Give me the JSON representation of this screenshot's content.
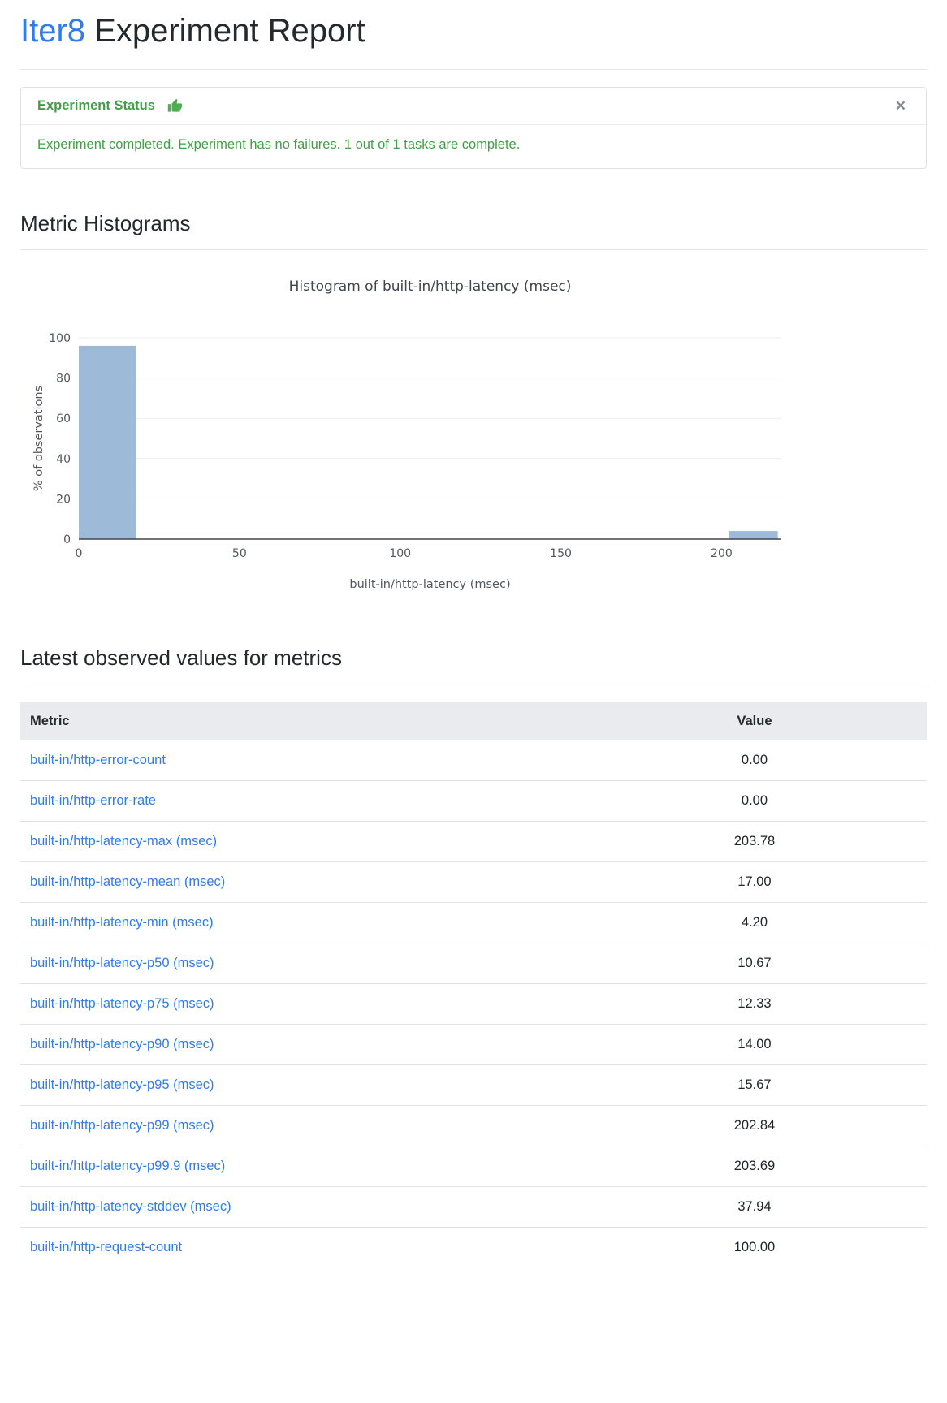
{
  "page": {
    "title_brand": "Iter8",
    "title_rest": " Experiment Report"
  },
  "status_card": {
    "header": "Experiment Status",
    "close_icon": "✕",
    "message": "Experiment completed. Experiment has no failures. 1 out of 1 tasks are complete.",
    "accent_color": "#41a046",
    "icon_color": "#4caf50"
  },
  "sections": {
    "histograms_heading": "Metric Histograms",
    "metrics_heading": "Latest observed values for metrics"
  },
  "chart_data": {
    "type": "bar",
    "title": "Histogram of built-in/http-latency (msec)",
    "xlabel": "built-in/http-latency (msec)",
    "ylabel": "% of observations",
    "xlim": [
      0,
      218.6
    ],
    "ylim": [
      0,
      100
    ],
    "xticks": [
      0,
      50,
      100,
      150,
      200
    ],
    "yticks": [
      0,
      20,
      40,
      60,
      80,
      100
    ],
    "bars": [
      {
        "x0": 0,
        "x1": 17.8,
        "value": 96
      },
      {
        "x0": 202.2,
        "x1": 217.5,
        "value": 4
      }
    ],
    "bar_color": "#9dbad8",
    "grid": true,
    "legend": "none"
  },
  "table": {
    "columns": [
      "Metric",
      "Value"
    ],
    "rows": [
      {
        "metric": "built-in/http-error-count",
        "value": "0.00"
      },
      {
        "metric": "built-in/http-error-rate",
        "value": "0.00"
      },
      {
        "metric": "built-in/http-latency-max (msec)",
        "value": "203.78"
      },
      {
        "metric": "built-in/http-latency-mean (msec)",
        "value": "17.00"
      },
      {
        "metric": "built-in/http-latency-min (msec)",
        "value": "4.20"
      },
      {
        "metric": "built-in/http-latency-p50 (msec)",
        "value": "10.67"
      },
      {
        "metric": "built-in/http-latency-p75 (msec)",
        "value": "12.33"
      },
      {
        "metric": "built-in/http-latency-p90 (msec)",
        "value": "14.00"
      },
      {
        "metric": "built-in/http-latency-p95 (msec)",
        "value": "15.67"
      },
      {
        "metric": "built-in/http-latency-p99 (msec)",
        "value": "202.84"
      },
      {
        "metric": "built-in/http-latency-p99.9 (msec)",
        "value": "203.69"
      },
      {
        "metric": "built-in/http-latency-stddev (msec)",
        "value": "37.94"
      },
      {
        "metric": "built-in/http-request-count",
        "value": "100.00"
      }
    ]
  }
}
